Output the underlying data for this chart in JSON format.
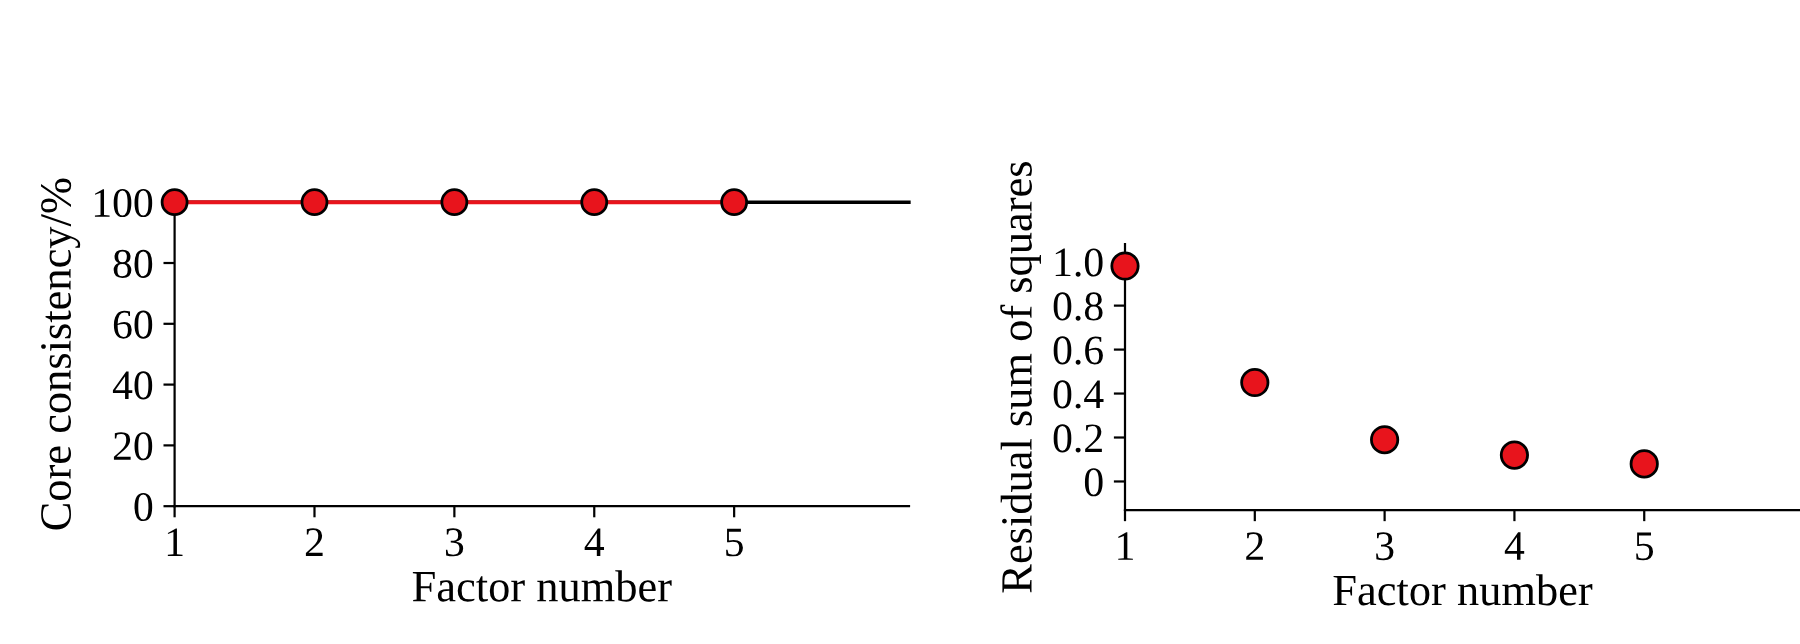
{
  "chart_data": [
    {
      "type": "line",
      "xlabel": "Factor number",
      "ylabel": "Core consistency/%",
      "x": [
        1,
        2,
        3,
        4,
        5
      ],
      "xlim": [
        1,
        6.25
      ],
      "xticks": [
        1,
        2,
        3,
        4,
        5
      ],
      "ylim": [
        0,
        100
      ],
      "yticks": [
        0,
        20,
        40,
        60,
        80,
        100
      ],
      "marker": "circle",
      "grid": false,
      "legend": false,
      "series": [
        {
          "color": "#e8141c",
          "values": [
            100,
            100,
            100,
            100,
            100
          ]
        }
      ],
      "ref_lines": [
        {
          "axis": "y",
          "value": 100,
          "color": "#000000"
        }
      ]
    },
    {
      "type": "scatter",
      "xlabel": "Factor number",
      "ylabel": "Residual sum of squares",
      "x": [
        1,
        2,
        3,
        4,
        5
      ],
      "xlim": [
        1,
        6.2
      ],
      "xticks": [
        1,
        2,
        3,
        4,
        5
      ],
      "ylim": [
        -0.13,
        1.08
      ],
      "yticks": [
        0,
        0.2,
        0.4,
        0.6,
        0.8,
        {
          "value": 1,
          "label": "1.0"
        }
      ],
      "marker": "circle",
      "grid": false,
      "legend": false,
      "series": [
        {
          "color": "#e8141c",
          "values": [
            0.98,
            0.45,
            0.19,
            0.12,
            0.08
          ]
        }
      ]
    }
  ]
}
